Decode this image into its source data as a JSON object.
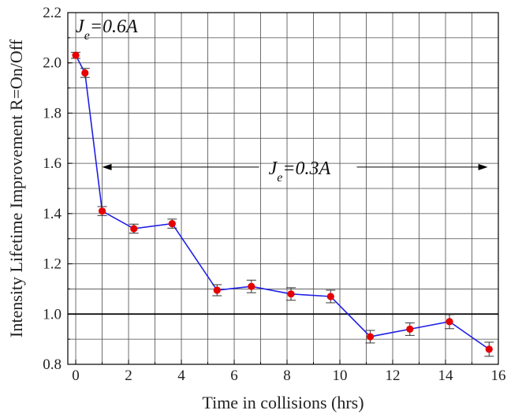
{
  "chart_data": {
    "type": "line",
    "title": "",
    "xlabel": "Time in collisions (hrs)",
    "ylabel": "Intensity Lifetime Improvement R=On/Off",
    "xlim": [
      -0.3,
      16
    ],
    "ylim": [
      0.8,
      2.2
    ],
    "xticks": [
      "0",
      "2",
      "4",
      "6",
      "8",
      "10",
      "12",
      "14",
      "16"
    ],
    "yticks": [
      "0.8",
      "1.0",
      "1.2",
      "1.4",
      "1.6",
      "1.8",
      "2.0",
      "2.2"
    ],
    "grid": true,
    "reference_line_y": 1.0,
    "series": [
      {
        "color": "#1f1fe6",
        "marker_color": "#e60000",
        "x": [
          0.0,
          0.35,
          1.0,
          2.2,
          3.65,
          5.35,
          6.65,
          8.15,
          9.65,
          11.15,
          12.65,
          14.15,
          15.65
        ],
        "y": [
          2.03,
          1.96,
          1.41,
          1.34,
          1.36,
          1.095,
          1.11,
          1.08,
          1.07,
          0.91,
          0.94,
          0.97,
          0.86
        ],
        "err": [
          0.012,
          0.018,
          0.018,
          0.018,
          0.018,
          0.022,
          0.025,
          0.025,
          0.025,
          0.025,
          0.025,
          0.028,
          0.028
        ]
      }
    ],
    "annotations": [
      {
        "text_main": "J",
        "text_sub": "e",
        "text_rest": "=0.6A",
        "x": 0.0,
        "y": 2.15
      },
      {
        "text_main": "J",
        "text_sub": "e",
        "text_rest": "=0.3A",
        "x": 7.3,
        "y": 1.585,
        "arrow_from": 1.0,
        "arrow_to": 15.6
      }
    ]
  }
}
